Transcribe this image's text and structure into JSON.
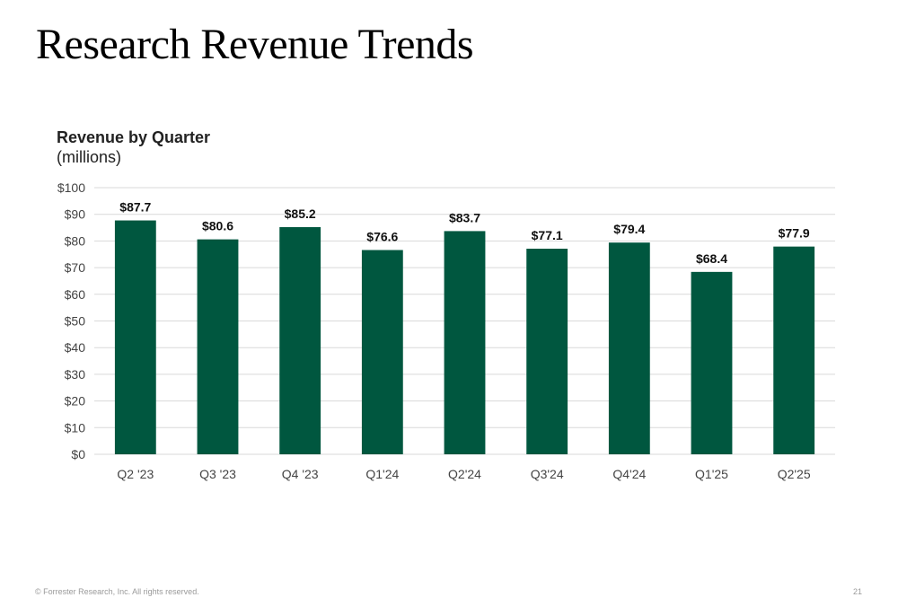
{
  "slide": {
    "title": "Research Revenue Trends",
    "footer": "© Forrester Research, Inc. All rights reserved.",
    "page_number": "21"
  },
  "chart_data": {
    "type": "bar",
    "title": "Revenue by Quarter",
    "subtitle": "(millions)",
    "categories": [
      "Q2 '23",
      "Q3 '23",
      "Q4 '23",
      "Q1'24",
      "Q2'24",
      "Q3'24",
      "Q4'24",
      "Q1'25",
      "Q2'25"
    ],
    "values": [
      87.7,
      80.6,
      85.2,
      76.6,
      83.7,
      77.1,
      79.4,
      68.4,
      77.9
    ],
    "data_labels": [
      "$87.7",
      "$80.6",
      "$85.2",
      "$76.6",
      "$83.7",
      "$77.1",
      "$79.4",
      "$68.4",
      "$77.9"
    ],
    "y_ticks": [
      "$0",
      "$10",
      "$20",
      "$30",
      "$40",
      "$50",
      "$60",
      "$70",
      "$80",
      "$90",
      "$100"
    ],
    "ylim": [
      0,
      100
    ],
    "ytick_step": 10,
    "grid": true,
    "legend": "none",
    "bar_color": "#00573F",
    "grid_color": "#d9d9d9"
  }
}
